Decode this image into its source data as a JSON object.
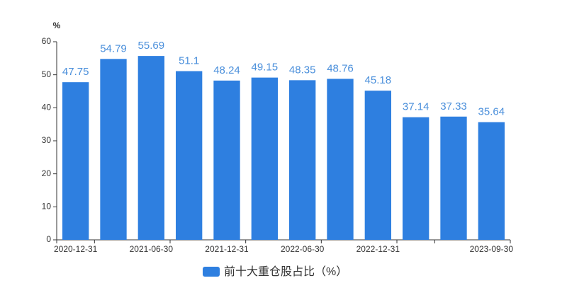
{
  "chart_data": {
    "type": "bar",
    "y_unit": "%",
    "categories": [
      "2020-12-31",
      null,
      "2021-06-30",
      null,
      "2021-12-31",
      null,
      "2022-06-30",
      null,
      "2022-12-31",
      null,
      null,
      "2023-09-30"
    ],
    "series": [
      {
        "name": "前十大重仓股占比（%）",
        "color": "#2e7fe0",
        "values": [
          47.75,
          54.79,
          55.69,
          51.1,
          48.24,
          49.15,
          48.35,
          48.76,
          45.18,
          37.14,
          37.33,
          35.64
        ]
      }
    ],
    "ylim": [
      0,
      60
    ],
    "yticks": [
      0,
      10,
      20,
      30,
      40,
      50,
      60
    ],
    "grid": false,
    "legend": "bottom"
  }
}
